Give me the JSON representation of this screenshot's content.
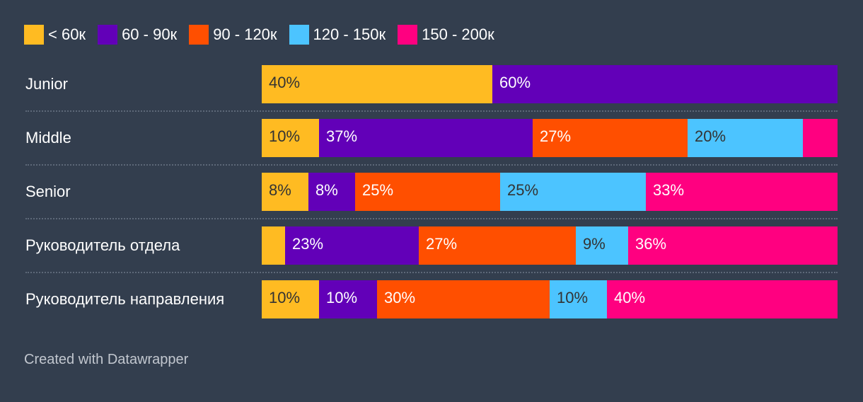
{
  "chart_data": {
    "type": "bar",
    "orientation": "horizontal",
    "stacked": true,
    "normalized": true,
    "categories": [
      "Junior",
      "Middle",
      "Senior",
      "Руководитель отдела",
      "Руководитель направления"
    ],
    "series": [
      {
        "name": "< 60к",
        "color": "#ffbb22",
        "text_color": "#333333",
        "values": [
          40,
          10,
          8,
          4,
          10
        ],
        "labels": [
          "40%",
          "10%",
          "8%",
          "",
          "10%"
        ]
      },
      {
        "name": "60 - 90к",
        "color": "#6200b8",
        "text_color": "#ffffff",
        "values": [
          60,
          37,
          8,
          23,
          10
        ],
        "labels": [
          "60%",
          "37%",
          "8%",
          "23%",
          "10%"
        ]
      },
      {
        "name": "90 - 120к",
        "color": "#ff4f00",
        "text_color": "#ffffff",
        "values": [
          0,
          27,
          25,
          27,
          30
        ],
        "labels": [
          "",
          "27%",
          "25%",
          "27%",
          "30%"
        ]
      },
      {
        "name": "120 - 150к",
        "color": "#4cc4ff",
        "text_color": "#333333",
        "values": [
          0,
          20,
          25,
          9,
          10
        ],
        "labels": [
          "",
          "20%",
          "25%",
          "9%",
          "10%"
        ]
      },
      {
        "name": "150 - 200к",
        "color": "#ff0080",
        "text_color": "#ffffff",
        "values": [
          0,
          6,
          33,
          36,
          40
        ],
        "labels": [
          "",
          "",
          "33%",
          "36%",
          "40%"
        ]
      }
    ],
    "xlim": [
      0,
      100
    ],
    "legend_position": "top-left",
    "grid": false
  },
  "footer": {
    "text": "Created with Datawrapper"
  }
}
